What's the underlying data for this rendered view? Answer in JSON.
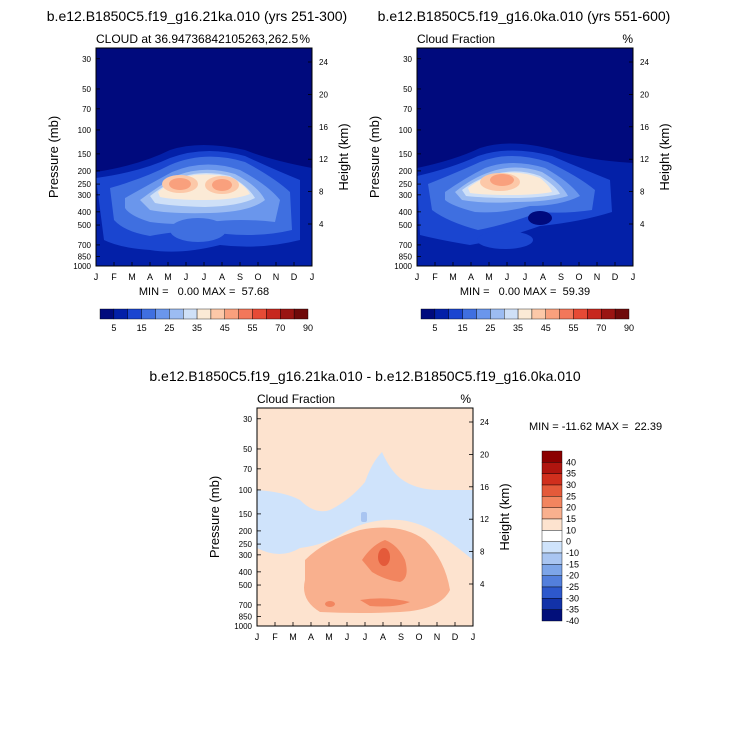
{
  "chart_data": [
    {
      "type": "heatmap",
      "title": "b.e12.B1850C5.f19_g16.21ka.010 (yrs 251-300)",
      "subtitle_left": "CLOUD at 36.94736842105263,262.5",
      "subtitle_right": "%",
      "xlabel": "",
      "ylabel": "Pressure (mb)",
      "ylabel_right": "Height (km)",
      "x_ticks": [
        "J",
        "F",
        "M",
        "A",
        "M",
        "J",
        "J",
        "A",
        "S",
        "O",
        "N",
        "D",
        "J"
      ],
      "y_ticks": [
        "30",
        "50",
        "70",
        "100",
        "150",
        "200",
        "250",
        "300",
        "400",
        "500",
        "700",
        "850",
        "1000"
      ],
      "y_ticks_right": [
        "24",
        "20",
        "16",
        "12",
        "8",
        "4"
      ],
      "stats": "MIN =   0.00 MAX =  57.68",
      "min": 0.0,
      "max": 57.68,
      "colorbar_labels": [
        "5",
        "15",
        "25",
        "35",
        "45",
        "55",
        "70",
        "90"
      ]
    },
    {
      "type": "heatmap",
      "title": "b.e12.B1850C5.f19_g16.0ka.010 (yrs 551-600)",
      "subtitle_left": "Cloud Fraction",
      "subtitle_right": "%",
      "xlabel": "",
      "ylabel": "Pressure (mb)",
      "ylabel_right": "Height (km)",
      "x_ticks": [
        "J",
        "F",
        "M",
        "A",
        "M",
        "J",
        "J",
        "A",
        "S",
        "O",
        "N",
        "D",
        "J"
      ],
      "y_ticks": [
        "30",
        "50",
        "70",
        "100",
        "150",
        "200",
        "250",
        "300",
        "400",
        "500",
        "700",
        "850",
        "1000"
      ],
      "y_ticks_right": [
        "24",
        "20",
        "16",
        "12",
        "8",
        "4"
      ],
      "stats": "MIN =   0.00 MAX =  59.39",
      "min": 0.0,
      "max": 59.39,
      "colorbar_labels": [
        "5",
        "15",
        "25",
        "35",
        "45",
        "55",
        "70",
        "90"
      ]
    },
    {
      "type": "heatmap",
      "title": "b.e12.B1850C5.f19_g16.21ka.010 - b.e12.B1850C5.f19_g16.0ka.010",
      "subtitle_left": "Cloud Fraction",
      "subtitle_right": "%",
      "xlabel": "",
      "ylabel": "Pressure (mb)",
      "ylabel_right": "Height (km)",
      "x_ticks": [
        "J",
        "F",
        "M",
        "A",
        "M",
        "J",
        "J",
        "A",
        "S",
        "O",
        "N",
        "D",
        "J"
      ],
      "y_ticks": [
        "30",
        "50",
        "70",
        "100",
        "150",
        "200",
        "250",
        "300",
        "400",
        "500",
        "700",
        "850",
        "1000"
      ],
      "y_ticks_right": [
        "24",
        "20",
        "16",
        "12",
        "8",
        "4"
      ],
      "stats": "MIN = -11.62 MAX =  22.39",
      "min": -11.62,
      "max": 22.39,
      "colorbar_labels": [
        "40",
        "35",
        "30",
        "25",
        "20",
        "15",
        "10",
        "0",
        "-10",
        "-15",
        "-20",
        "-25",
        "-30",
        "-35",
        "-40"
      ]
    }
  ],
  "colors": {
    "seq": [
      "#000a7d",
      "#0320a8",
      "#1a45d0",
      "#3f6fe0",
      "#6a96ec",
      "#9cbcf2",
      "#cfe0f7",
      "#fbead6",
      "#fcc8a8",
      "#f9a07d",
      "#f2775a",
      "#e64a35",
      "#c7281e",
      "#9a1512",
      "#6f0a0a"
    ],
    "diff": [
      "#8b0000",
      "#b0150f",
      "#d02f1d",
      "#e45a3a",
      "#f2855f",
      "#f9b08e",
      "#fde3cf",
      "#ffffff",
      "#cfe3fb",
      "#a9c5f1",
      "#7da5e8",
      "#537fdc",
      "#2d58cc",
      "#1232a8",
      "#020f7a"
    ]
  }
}
